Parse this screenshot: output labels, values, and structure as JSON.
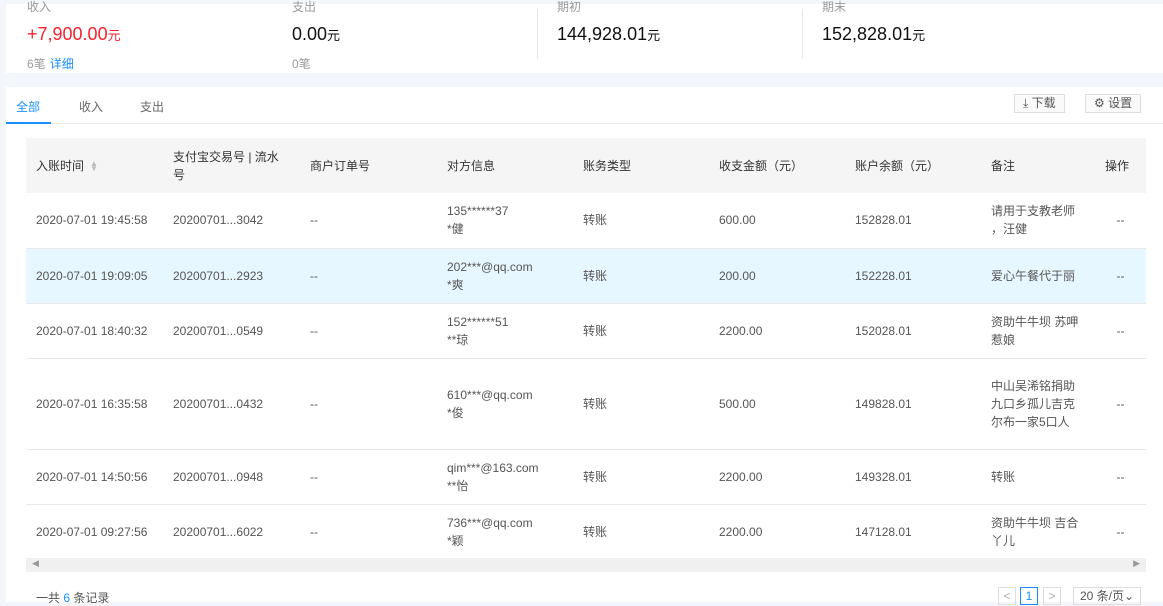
{
  "summary": [
    {
      "label": "收入",
      "value": "+7,900.00",
      "unit": "元",
      "count": "6笔",
      "link": "详细",
      "color": "#f5222d"
    },
    {
      "label": "支出",
      "value": "0.00",
      "unit": "元",
      "count": "0笔"
    },
    {
      "label": "期初",
      "value": "144,928.01",
      "unit": "元"
    },
    {
      "label": "期末",
      "value": "152,828.01",
      "unit": "元"
    }
  ],
  "tabs": [
    "全部",
    "收入",
    "支出"
  ],
  "toolbar": {
    "download": "下载",
    "settings": "设置"
  },
  "table": {
    "headers": [
      "入账时间",
      "支付宝交易号 | 流水号",
      "商户订单号",
      "对方信息",
      "账务类型",
      "收支金额（元）",
      "账户余额（元）",
      "备注",
      "操作"
    ],
    "rows": [
      {
        "time": "2020-07-01 19:45:58",
        "trade_no": "20200701...3042",
        "order": "--",
        "party1": "135******37",
        "party2": "*健",
        "type": "转账",
        "amount": "600.00",
        "balance": "152828.01",
        "note": "请用于支教老师 ，汪健",
        "op": "--"
      },
      {
        "time": "2020-07-01 19:09:05",
        "trade_no": "20200701...2923",
        "order": "--",
        "party1": "202***@qq.com",
        "party2": "*爽",
        "type": "转账",
        "amount": "200.00",
        "balance": "152228.01",
        "note": "爱心午餐代于丽",
        "op": "--"
      },
      {
        "time": "2020-07-01 18:40:32",
        "trade_no": "20200701...0549",
        "order": "--",
        "party1": "152******51",
        "party2": "**琼",
        "type": "转账",
        "amount": "2200.00",
        "balance": "152028.01",
        "note": "资助牛牛坝 苏呷惹娘",
        "op": "--"
      },
      {
        "time": "2020-07-01 16:35:58",
        "trade_no": "20200701...0432",
        "order": "--",
        "party1": "610***@qq.com",
        "party2": "*俊",
        "type": "转账",
        "amount": "500.00",
        "balance": "149828.01",
        "note": "中山吴浠铭捐助九口乡孤儿吉克尔布一家5口人",
        "op": "--"
      },
      {
        "time": "2020-07-01 14:50:56",
        "trade_no": "20200701...0948",
        "order": "--",
        "party1": "qim***@163.com",
        "party2": "**怡",
        "type": "转账",
        "amount": "2200.00",
        "balance": "149328.01",
        "note": "转账",
        "op": "--"
      },
      {
        "time": "2020-07-01 09:27:56",
        "trade_no": "20200701...6022",
        "order": "--",
        "party1": "736***@qq.com",
        "party2": "*颖",
        "type": "转账",
        "amount": "2200.00",
        "balance": "147128.01",
        "note": "资助牛牛坝 吉合丫儿",
        "op": "--"
      }
    ]
  },
  "footer": {
    "prefix": "一共",
    "total": "6",
    "suffix": "条记录"
  },
  "pagination": {
    "current": "1",
    "page_size": "20 条/页"
  },
  "highlight_row": 1
}
